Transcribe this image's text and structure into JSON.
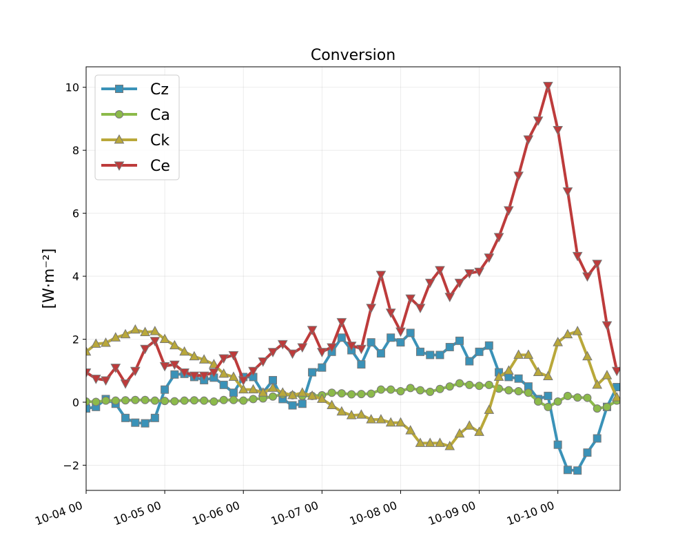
{
  "chart_data": {
    "type": "line",
    "title": "Conversion",
    "xlabel": "",
    "ylabel": "[W·m⁻²]",
    "ylim": [
      -2.8,
      10.65
    ],
    "xlim": [
      "10-04 00",
      "10-10 19"
    ],
    "yticks": [
      "−2",
      "0",
      "2",
      "4",
      "6",
      "8",
      "10"
    ],
    "ytick_values": [
      -2,
      0,
      2,
      4,
      6,
      8,
      10
    ],
    "xticks": [
      "10-04 00",
      "10-05 00",
      "10-06 00",
      "10-07 00",
      "10-08 00",
      "10-09 00",
      "10-10 00"
    ],
    "xtick_values": [
      "10-04 00",
      "10-05 00",
      "10-06 00",
      "10-07 00",
      "10-08 00",
      "10-09 00",
      "10-10 00"
    ],
    "grid": true,
    "legend_position": "top-left",
    "x": [
      "10-04 00",
      "10-04 03",
      "10-04 06",
      "10-04 09",
      "10-04 12",
      "10-04 15",
      "10-04 18",
      "10-04 21",
      "10-05 00",
      "10-05 03",
      "10-05 06",
      "10-05 09",
      "10-05 12",
      "10-05 15",
      "10-05 18",
      "10-05 21",
      "10-06 00",
      "10-06 03",
      "10-06 06",
      "10-06 09",
      "10-06 12",
      "10-06 15",
      "10-06 18",
      "10-06 21",
      "10-07 00",
      "10-07 03",
      "10-07 06",
      "10-07 09",
      "10-07 12",
      "10-07 15",
      "10-07 18",
      "10-07 21",
      "10-08 00",
      "10-08 03",
      "10-08 06",
      "10-08 09",
      "10-08 12",
      "10-08 15",
      "10-08 18",
      "10-08 21",
      "10-09 00",
      "10-09 03",
      "10-09 06",
      "10-09 09",
      "10-09 12",
      "10-09 15",
      "10-09 18",
      "10-09 21",
      "10-10 00",
      "10-10 03",
      "10-10 06",
      "10-10 09",
      "10-10 12",
      "10-10 15",
      "10-10 18"
    ],
    "series": [
      {
        "name": "Cz",
        "color": "#3a92b8",
        "marker": "square",
        "values": [
          -0.2,
          -0.15,
          0.1,
          -0.05,
          -0.5,
          -0.65,
          -0.67,
          -0.5,
          0.4,
          0.88,
          0.9,
          0.8,
          0.7,
          0.78,
          0.55,
          0.3,
          0.8,
          0.8,
          0.3,
          0.7,
          0.1,
          -0.1,
          -0.05,
          0.95,
          1.1,
          1.6,
          2.05,
          1.65,
          1.2,
          1.9,
          1.55,
          2.05,
          1.9,
          2.2,
          1.6,
          1.5,
          1.5,
          1.75,
          1.95,
          1.3,
          1.6,
          1.8,
          0.95,
          0.8,
          0.75,
          0.5,
          0.1,
          0.2,
          -1.35,
          -2.15,
          -2.17,
          -1.6,
          -1.15,
          -0.15,
          0.48
        ]
      },
      {
        "name": "Ca",
        "color": "#8cba4a",
        "marker": "circle",
        "values": [
          0.02,
          0.01,
          0.05,
          0.05,
          0.06,
          0.07,
          0.07,
          0.05,
          0.04,
          0.03,
          0.05,
          0.06,
          0.05,
          0.02,
          0.07,
          0.07,
          0.05,
          0.1,
          0.12,
          0.18,
          0.25,
          0.22,
          0.2,
          0.2,
          0.22,
          0.3,
          0.28,
          0.25,
          0.26,
          0.27,
          0.4,
          0.4,
          0.35,
          0.45,
          0.38,
          0.33,
          0.42,
          0.5,
          0.6,
          0.55,
          0.52,
          0.55,
          0.43,
          0.38,
          0.35,
          0.3,
          0.02,
          -0.15,
          0.02,
          0.2,
          0.15,
          0.14,
          -0.2,
          -0.15,
          0.05
        ]
      },
      {
        "name": "Ck",
        "color": "#b9a83a",
        "marker": "triangle-up",
        "values": [
          1.6,
          1.85,
          1.88,
          2.05,
          2.15,
          2.3,
          2.22,
          2.25,
          2.0,
          1.8,
          1.6,
          1.45,
          1.35,
          1.2,
          0.9,
          0.8,
          0.4,
          0.4,
          0.3,
          0.45,
          0.3,
          0.22,
          0.3,
          0.2,
          0.1,
          -0.1,
          -0.3,
          -0.42,
          -0.4,
          -0.55,
          -0.55,
          -0.65,
          -0.65,
          -0.9,
          -1.3,
          -1.3,
          -1.3,
          -1.4,
          -1.0,
          -0.75,
          -0.95,
          -0.25,
          0.8,
          1.0,
          1.5,
          1.5,
          0.95,
          0.82,
          1.9,
          2.15,
          2.25,
          1.45,
          0.55,
          0.85,
          0.15
        ]
      },
      {
        "name": "Ce",
        "color": "#bd3b3b",
        "marker": "triangle-down",
        "values": [
          0.95,
          0.75,
          0.7,
          1.1,
          0.6,
          1.0,
          1.7,
          1.95,
          1.15,
          1.2,
          0.95,
          0.85,
          0.85,
          0.95,
          1.4,
          1.5,
          0.7,
          1.0,
          1.3,
          1.6,
          1.85,
          1.55,
          1.75,
          2.3,
          1.6,
          1.75,
          2.55,
          1.8,
          1.7,
          3.0,
          4.05,
          2.85,
          2.25,
          3.3,
          3.0,
          3.8,
          4.2,
          3.35,
          3.8,
          4.1,
          4.15,
          4.6,
          5.25,
          6.1,
          7.2,
          8.35,
          8.95,
          10.05,
          8.65,
          6.7,
          4.65,
          4.0,
          4.4,
          2.45,
          1.0
        ]
      }
    ]
  }
}
